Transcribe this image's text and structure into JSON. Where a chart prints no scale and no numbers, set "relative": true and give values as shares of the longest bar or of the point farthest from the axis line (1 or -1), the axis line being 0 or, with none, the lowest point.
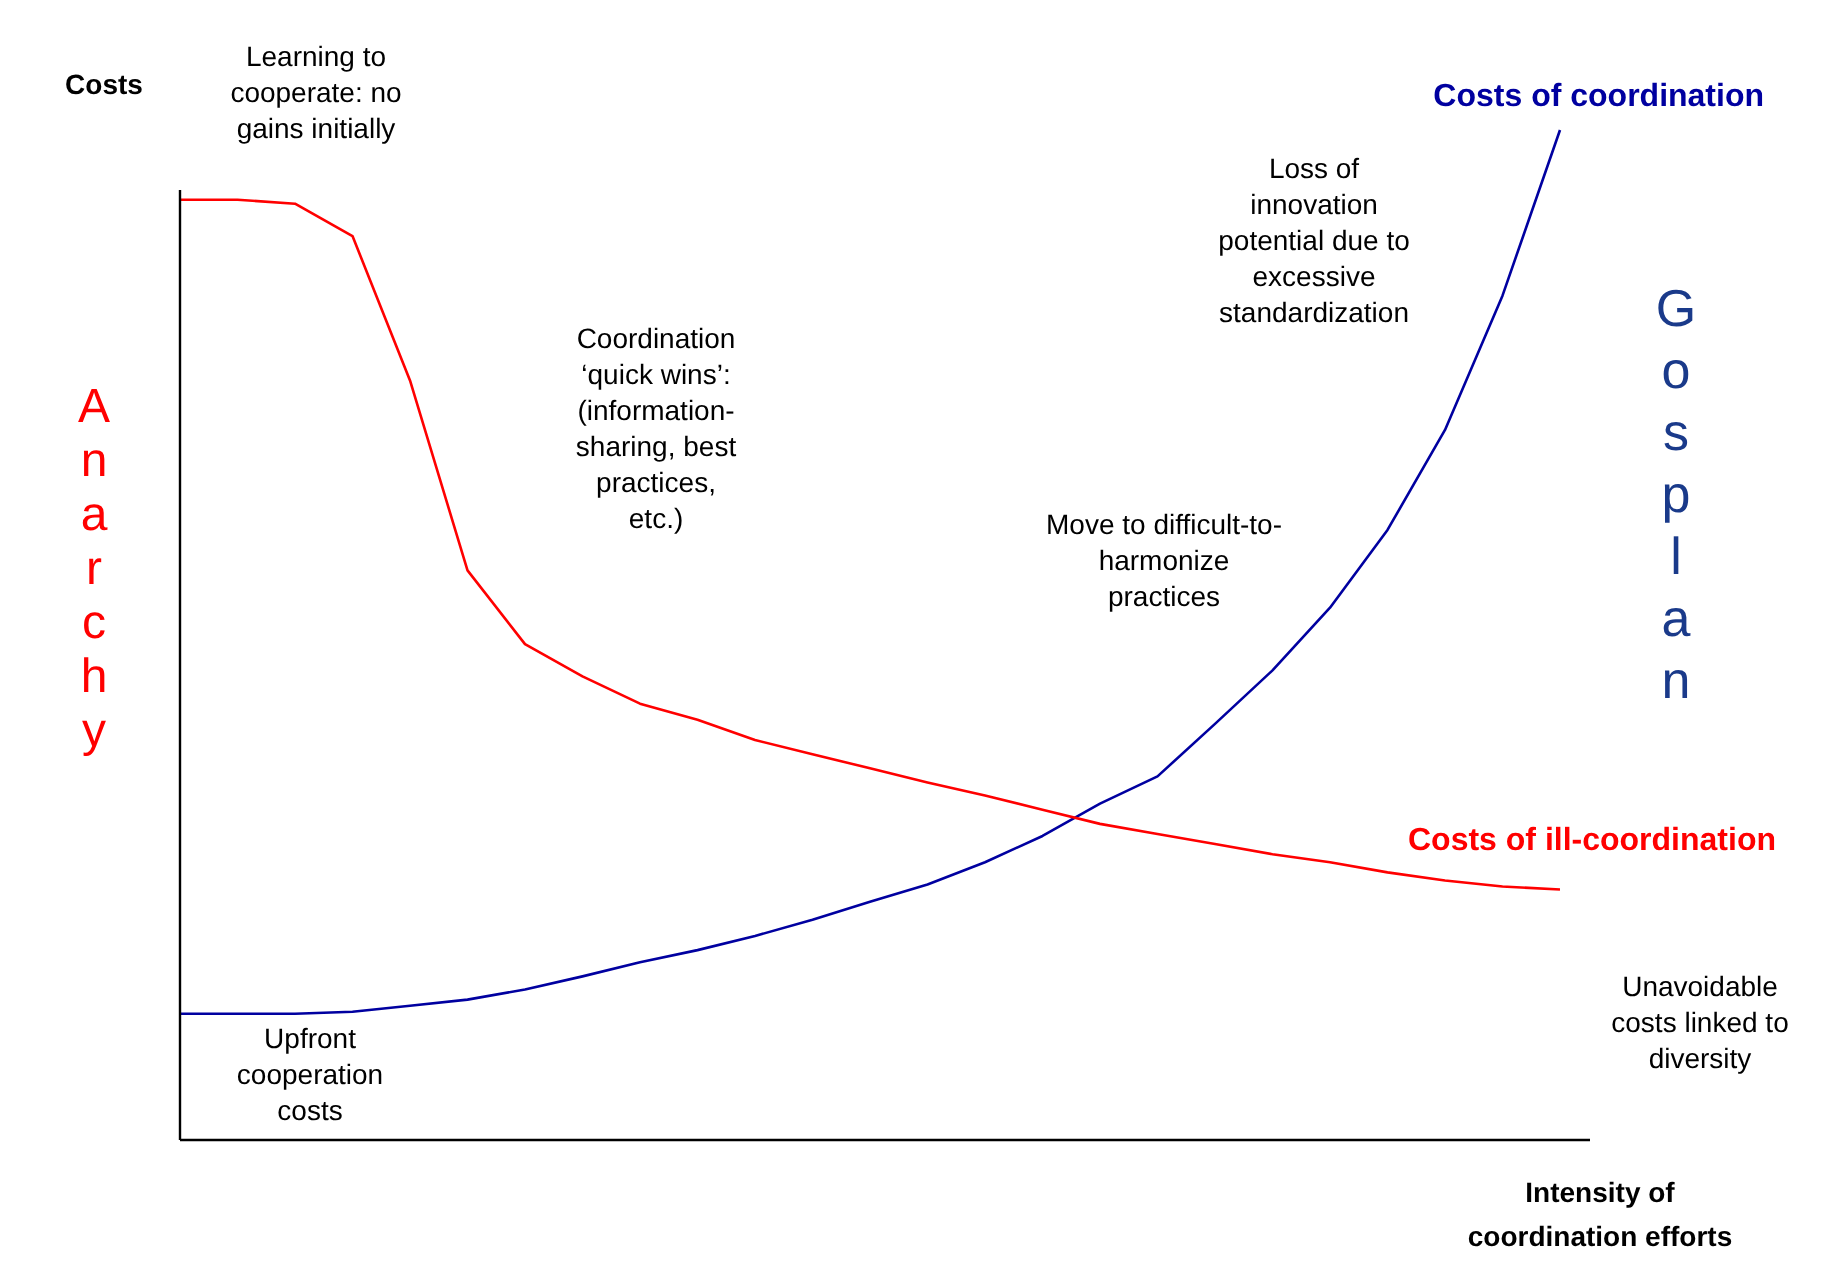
{
  "chart_data": {
    "type": "line",
    "relative": true,
    "ylabel": "Costs",
    "xlabel": "Intensity of\ncoordination efforts",
    "categories": [
      null,
      null,
      null,
      null,
      null,
      null,
      null,
      null,
      null,
      null,
      null,
      null,
      null,
      null,
      null,
      null,
      null,
      null,
      null,
      null,
      null,
      null,
      null,
      null,
      null
    ],
    "series": [
      {
        "name": "Costs of coordination",
        "color": "#0000a0",
        "values": [
          0.125,
          0.125,
          0.125,
          0.127,
          0.133,
          0.139,
          0.149,
          0.162,
          0.176,
          0.188,
          0.202,
          0.218,
          0.236,
          0.253,
          0.275,
          0.301,
          0.333,
          0.36,
          0.412,
          0.465,
          0.527,
          0.604,
          0.703,
          0.836,
          1.0
        ]
      },
      {
        "name": "Costs of ill-coordination",
        "color": "#ff0000",
        "values": [
          0.931,
          0.931,
          0.927,
          0.895,
          0.752,
          0.564,
          0.491,
          0.459,
          0.432,
          0.416,
          0.396,
          0.382,
          0.368,
          0.354,
          0.341,
          0.327,
          0.313,
          0.303,
          0.293,
          0.283,
          0.275,
          0.265,
          0.257,
          0.251,
          0.248
        ]
      }
    ],
    "annotations": [
      "Learning to\ncooperate: no\ngains initially",
      "Coordination\n‘quick wins’:\n(information-\nsharing, best\npractices,\netc.)",
      "Loss of\ninnovation\npotential due to\nexcessive\nstandardization",
      "Move to difficult-to-\nharmonize\npractices",
      "Upfront\ncooperation\ncosts",
      "Unavoidable\ncosts linked to\ndiversity",
      "Anarchy",
      "Gosplan"
    ]
  }
}
